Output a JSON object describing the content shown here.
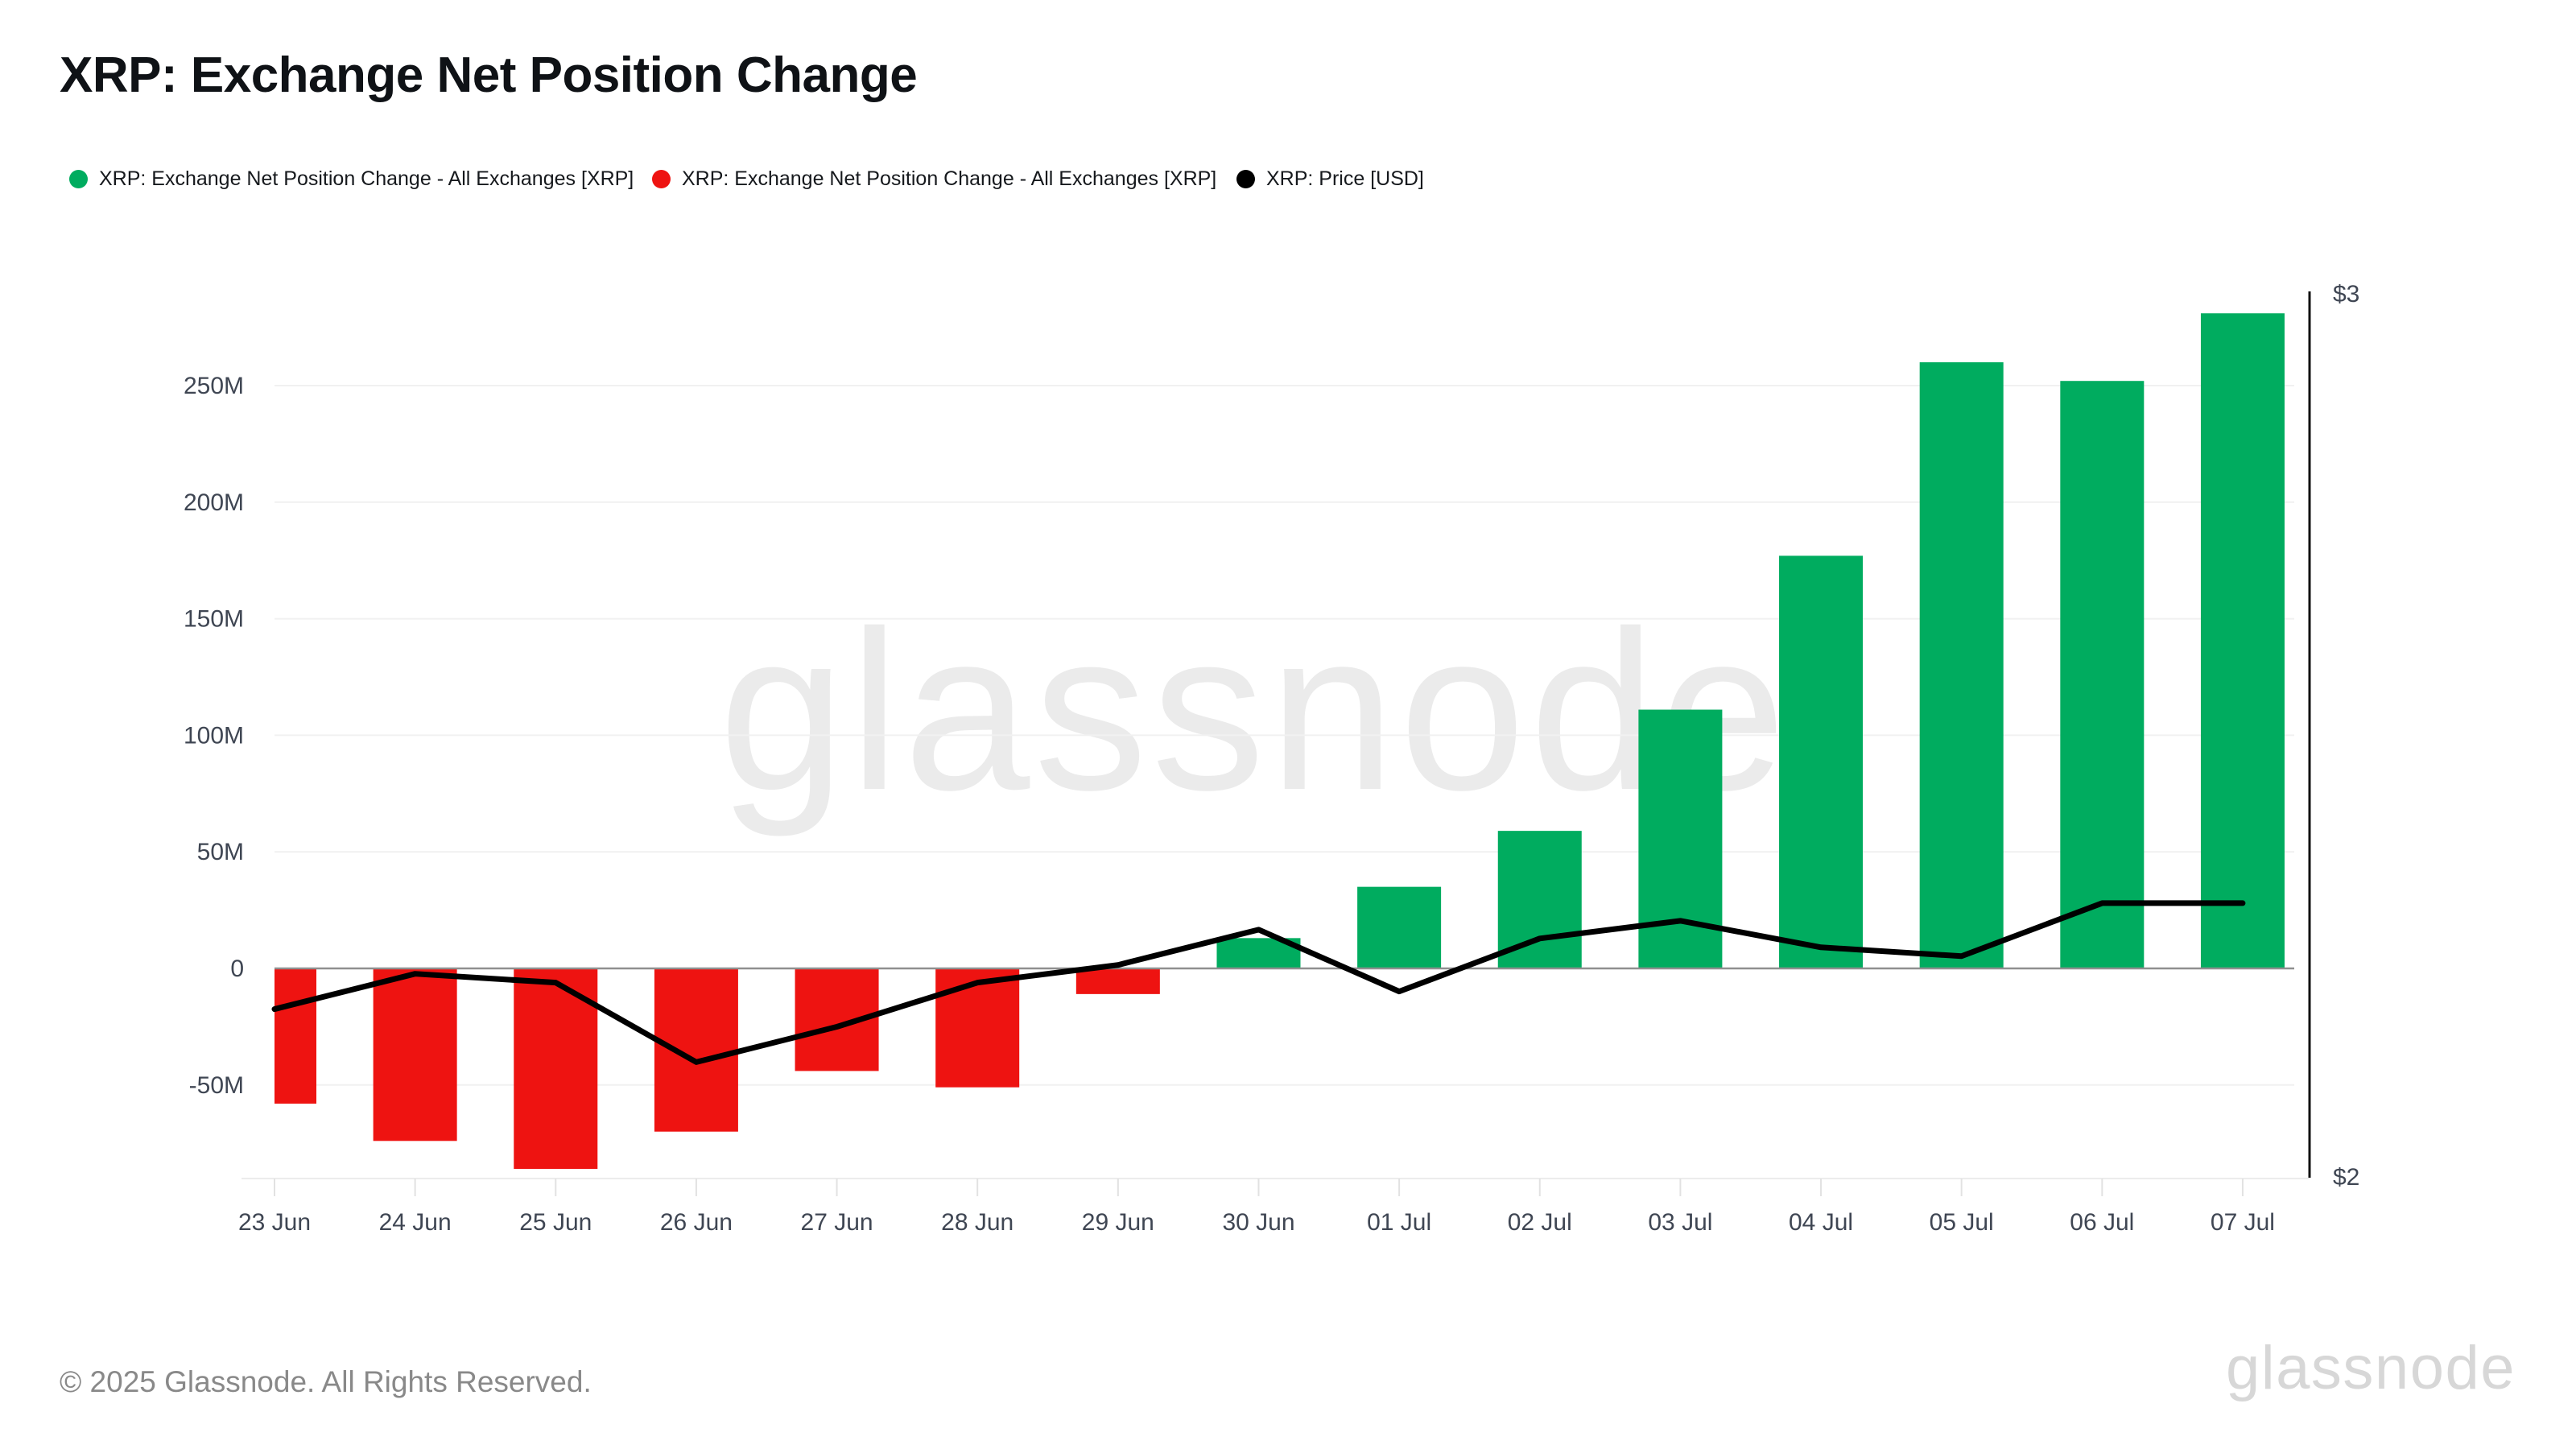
{
  "header": {
    "title": "XRP: Exchange Net Position Change"
  },
  "legend": {
    "items": [
      {
        "label": "XRP: Exchange Net Position Change - All Exchanges [XRP]",
        "color": "#00AC5F"
      },
      {
        "label": "XRP: Exchange Net Position Change - All Exchanges [XRP]",
        "color": "#EE1311"
      },
      {
        "label": "XRP: Price [USD]",
        "color": "#000000"
      }
    ]
  },
  "chart_data": {
    "type": "bar+line",
    "title": "XRP: Exchange Net Position Change",
    "categories": [
      "23 Jun",
      "24 Jun",
      "25 Jun",
      "26 Jun",
      "27 Jun",
      "28 Jun",
      "29 Jun",
      "30 Jun",
      "01 Jul",
      "02 Jul",
      "03 Jul",
      "04 Jul",
      "05 Jul",
      "06 Jul",
      "07 Jul"
    ],
    "series": [
      {
        "name": "XRP: Exchange Net Position Change - All Exchanges [XRP]",
        "type": "bar",
        "axis": "left",
        "unit": "XRP (millions)",
        "values": [
          -58,
          -74,
          -86,
          -70,
          -44,
          -51,
          -11,
          13,
          35,
          59,
          111,
          177,
          260,
          252,
          281
        ],
        "positive_color": "#00AC5F",
        "negative_color": "#EE1311"
      },
      {
        "name": "XRP: Price [USD]",
        "type": "line",
        "axis": "right",
        "unit": "USD",
        "values": [
          2.19,
          2.23,
          2.22,
          2.13,
          2.17,
          2.22,
          2.24,
          2.28,
          2.21,
          2.27,
          2.29,
          2.26,
          2.25,
          2.31,
          2.31
        ],
        "color": "#000000"
      }
    ],
    "left_axis": {
      "unit": "XRP",
      "tick_labels": [
        "250M",
        "200M",
        "150M",
        "100M",
        "50M",
        "0",
        "-50M"
      ],
      "tick_values": [
        250,
        200,
        150,
        100,
        50,
        0,
        -50
      ]
    },
    "right_axis": {
      "tick_labels": [
        "$3",
        "$2"
      ],
      "tick_values": [
        3,
        2
      ],
      "min": 2,
      "max": 3
    },
    "grid": true,
    "legend_position": "top"
  },
  "watermark": {
    "text": "glassnode"
  },
  "footer": {
    "copyright": "© 2025 Glassnode. All Rights Reserved.",
    "brand": "glassnode"
  },
  "colors": {
    "positive": "#00AC5F",
    "negative": "#EE1311",
    "price_line": "#000000",
    "gridline": "#f1f1f1",
    "zero_line": "#8f8f8f",
    "axis_text": "#3f4653",
    "baseline": "#ececec"
  }
}
